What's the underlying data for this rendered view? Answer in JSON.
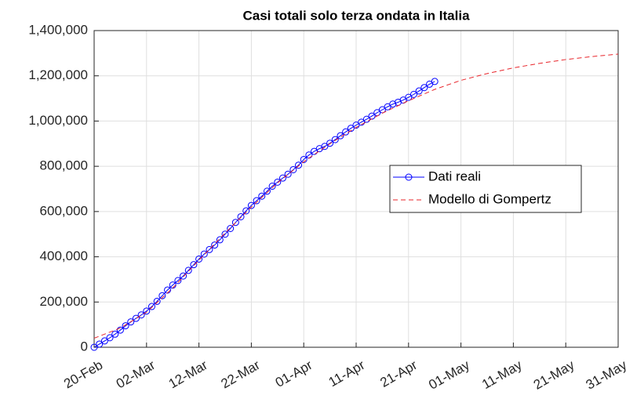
{
  "chart_data": {
    "type": "line",
    "title": "Casi totali solo terza ondata in Italia",
    "xlim": [
      0,
      100
    ],
    "xticks": [
      {
        "value": 0,
        "label": "20-Feb"
      },
      {
        "value": 10,
        "label": "02-Mar"
      },
      {
        "value": 20,
        "label": "12-Mar"
      },
      {
        "value": 30,
        "label": "22-Mar"
      },
      {
        "value": 40,
        "label": "01-Apr"
      },
      {
        "value": 50,
        "label": "11-Apr"
      },
      {
        "value": 60,
        "label": "21-Apr"
      },
      {
        "value": 70,
        "label": "01-May"
      },
      {
        "value": 80,
        "label": "11-May"
      },
      {
        "value": 90,
        "label": "21-May"
      },
      {
        "value": 100,
        "label": "31-May"
      }
    ],
    "ylim": [
      0,
      1400000
    ],
    "yticks": [
      0,
      {
        "value": 200000,
        "label": "200,000"
      },
      {
        "value": 400000,
        "label": "400,000"
      },
      {
        "value": 600000,
        "label": "600,000"
      },
      {
        "value": 800000,
        "label": "800,000"
      },
      {
        "value": 1000000,
        "label": "1,000,000"
      },
      {
        "value": 1200000,
        "label": "1,200,000"
      },
      {
        "value": 1400000,
        "label": "1,400,000"
      }
    ],
    "grid": true,
    "legend": "center-right",
    "series": [
      {
        "name": "Dati reali",
        "color": "#0000ff",
        "line_style": "solid",
        "marker": "o",
        "x": [
          0,
          1,
          2,
          3,
          4,
          5,
          6,
          7,
          8,
          9,
          10,
          11,
          12,
          13,
          14,
          15,
          16,
          17,
          18,
          19,
          20,
          21,
          22,
          23,
          24,
          25,
          26,
          27,
          28,
          29,
          30,
          31,
          32,
          33,
          34,
          35,
          36,
          37,
          38,
          39,
          40,
          41,
          42,
          43,
          44,
          45,
          46,
          47,
          48,
          49,
          50,
          51,
          52,
          53,
          54,
          55,
          56,
          57,
          58,
          59,
          60,
          61,
          62,
          63,
          64,
          65
        ],
        "values": [
          0,
          14000,
          28000,
          42000,
          58000,
          76000,
          95000,
          112000,
          128000,
          143000,
          160000,
          180000,
          203000,
          228000,
          253000,
          275000,
          295000,
          315000,
          340000,
          365000,
          390000,
          412000,
          432000,
          452000,
          475000,
          500000,
          525000,
          552000,
          577000,
          603000,
          627000,
          648000,
          668000,
          690000,
          712000,
          730000,
          748000,
          765000,
          785000,
          805000,
          830000,
          850000,
          866000,
          878000,
          888000,
          902000,
          918000,
          935000,
          952000,
          968000,
          982000,
          995000,
          1008000,
          1022000,
          1037000,
          1050000,
          1063000,
          1075000,
          1083000,
          1093000,
          1105000,
          1118000,
          1133000,
          1148000,
          1163000,
          1175000
        ]
      },
      {
        "name": "Modello di Gompertz",
        "color": "#e8242a",
        "line_style": "dashed",
        "x": [
          0,
          5,
          10,
          15,
          20,
          25,
          30,
          35,
          40,
          45,
          50,
          55,
          60,
          65,
          70,
          75,
          80,
          85,
          90,
          95,
          100
        ],
        "values": [
          40000,
          85000,
          155000,
          262000,
          385000,
          505000,
          620000,
          727000,
          820000,
          900000,
          972000,
          1035000,
          1090000,
          1140000,
          1180000,
          1210000,
          1235000,
          1255000,
          1272000,
          1285000,
          1296000
        ]
      }
    ]
  }
}
